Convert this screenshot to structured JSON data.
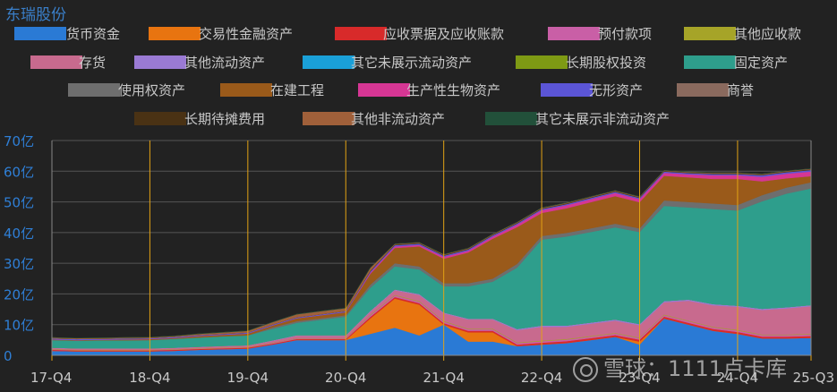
{
  "company_name": "东瑞股份",
  "watermark": "雪球：1111卢卡库",
  "chart_data": {
    "type": "area",
    "stacked": true,
    "y_unit": "亿",
    "ylim": [
      0,
      70
    ],
    "y_ticks": [
      "0",
      "10亿",
      "20亿",
      "30亿",
      "40亿",
      "50亿",
      "60亿",
      "70亿"
    ],
    "x_ticks": [
      "17-Q4",
      "18-Q4",
      "19-Q4",
      "20-Q4",
      "21-Q4",
      "22-Q4",
      "23-Q4",
      "24-Q4",
      "25-Q3"
    ],
    "x": [
      "17-Q4",
      "18-Q1",
      "18-Q2",
      "18-Q3",
      "18-Q4",
      "19-Q1",
      "19-Q2",
      "19-Q3",
      "19-Q4",
      "20-Q1",
      "20-Q2",
      "20-Q3",
      "20-Q4",
      "21-Q1",
      "21-Q2",
      "21-Q3",
      "21-Q4",
      "22-Q1",
      "22-Q2",
      "22-Q3",
      "22-Q4",
      "23-Q1",
      "23-Q2",
      "23-Q3",
      "23-Q4",
      "24-Q1",
      "24-Q2",
      "24-Q3",
      "24-Q4",
      "25-Q1",
      "25-Q2",
      "25-Q3"
    ],
    "legend_position": "top",
    "grid": true,
    "series": [
      {
        "name": "货币资金",
        "color": "#2a7ad5",
        "values": [
          1.5,
          1.3,
          1.3,
          1.3,
          1.3,
          1.5,
          1.8,
          2,
          2.2,
          3.5,
          5,
          5,
          5,
          7,
          9,
          6.5,
          10,
          4.5,
          4.5,
          3,
          3.5,
          4,
          5,
          6,
          3.5,
          12,
          10,
          8,
          7,
          5.5,
          5.5,
          5.7
        ]
      },
      {
        "name": "交易性金融资产",
        "color": "#e87410",
        "values": [
          0,
          0,
          0,
          0,
          0,
          0,
          0,
          0,
          0,
          0,
          0,
          0,
          0,
          5,
          9.5,
          10,
          0,
          3,
          3,
          0,
          0,
          0,
          0,
          0,
          1,
          0,
          0,
          0,
          0,
          0,
          0,
          0
        ]
      },
      {
        "name": "应收票据及应收账款",
        "color": "#d82a2a",
        "values": [
          0.3,
          0.3,
          0.3,
          0.3,
          0.3,
          0.3,
          0.3,
          0.3,
          0.3,
          0.3,
          0.3,
          0.3,
          0.3,
          0.5,
          0.5,
          0.5,
          0.5,
          0.5,
          0.5,
          0.5,
          0.6,
          0.6,
          0.6,
          0.6,
          0.6,
          0.6,
          0.6,
          0.6,
          0.6,
          0.6,
          0.6,
          0.6
        ]
      },
      {
        "name": "预付款项",
        "color": "#c95fa6",
        "values": [
          0.1,
          0.1,
          0.1,
          0.1,
          0.1,
          0.1,
          0.1,
          0.1,
          0.1,
          0.2,
          0.2,
          0.2,
          0.2,
          0.5,
          0.5,
          0.5,
          0.5,
          0.5,
          0.5,
          0.5,
          0.5,
          0.5,
          0.5,
          0.5,
          0.5,
          0.5,
          0.5,
          0.5,
          0.5,
          0.5,
          0.5,
          0.5
        ]
      },
      {
        "name": "其他应收款",
        "color": "#a6a428",
        "values": [
          0.1,
          0.1,
          0.1,
          0.1,
          0.1,
          0.1,
          0.1,
          0.1,
          0.1,
          0.1,
          0.1,
          0.1,
          0.1,
          0.2,
          0.2,
          0.2,
          0.2,
          0.2,
          0.2,
          0.2,
          0.2,
          0.2,
          0.2,
          0.2,
          0.2,
          0.2,
          0.2,
          0.2,
          0.2,
          0.2,
          0.2,
          0.2
        ]
      },
      {
        "name": "存货",
        "color": "#c86a8e",
        "values": [
          0.4,
          0.4,
          0.4,
          0.4,
          0.4,
          0.4,
          0.4,
          0.5,
          0.5,
          0.6,
          0.8,
          0.8,
          0.8,
          1,
          1.5,
          2,
          2.5,
          3,
          3,
          4,
          4.5,
          4,
          4,
          4,
          4,
          4,
          6.5,
          7,
          7.5,
          8,
          8.5,
          9
        ]
      },
      {
        "name": "其他流动资产",
        "color": "#9a7ad4",
        "values": [
          0.1,
          0.1,
          0.1,
          0.1,
          0.1,
          0.1,
          0.1,
          0.1,
          0.1,
          0.2,
          0.2,
          0.2,
          0.2,
          0.3,
          0.3,
          0.3,
          0.3,
          0.3,
          0.3,
          0.4,
          0.4,
          0.4,
          0.4,
          0.4,
          0.4,
          0.4,
          0.4,
          0.4,
          0.4,
          0.4,
          0.4,
          0.4
        ]
      },
      {
        "name": "其它未展示流动资产",
        "color": "#1aa0d8",
        "values": [
          0,
          0,
          0,
          0,
          0,
          0,
          0,
          0,
          0,
          0,
          0,
          0,
          0,
          0,
          0,
          0,
          0,
          0,
          0,
          0,
          0,
          0,
          0,
          0,
          0,
          0,
          0,
          0,
          0,
          0,
          0,
          0
        ]
      },
      {
        "name": "长期股权投资",
        "color": "#7e9a14",
        "values": [
          0,
          0,
          0,
          0,
          0,
          0,
          0,
          0,
          0,
          0,
          0,
          0,
          0,
          0,
          0,
          0,
          0,
          0,
          0,
          0,
          0,
          0,
          0,
          0,
          0,
          0,
          0,
          0,
          0,
          0,
          0,
          0
        ]
      },
      {
        "name": "固定资产",
        "color": "#2e9e8c",
        "values": [
          2.5,
          2.5,
          2.6,
          2.6,
          2.7,
          2.9,
          3,
          3.1,
          3.2,
          3.7,
          4,
          5,
          6,
          7.5,
          7.5,
          8,
          8.5,
          10.5,
          12,
          20,
          28,
          29,
          29.5,
          30,
          30,
          31,
          30,
          31,
          31,
          35,
          37,
          38
        ]
      },
      {
        "name": "使用权资产",
        "color": "#6e6e6e",
        "values": [
          0,
          0,
          0,
          0,
          0,
          0,
          0,
          0,
          0,
          0.5,
          0.5,
          0.5,
          0.5,
          1,
          1,
          1,
          1,
          1,
          1,
          1.2,
          1.2,
          1.2,
          1.2,
          1.2,
          1.2,
          1.8,
          1.8,
          1.8,
          1.8,
          2,
          2,
          2
        ]
      },
      {
        "name": "在建工程",
        "color": "#9a5a1a",
        "values": [
          0.2,
          0.2,
          0.2,
          0.3,
          0.3,
          0.3,
          0.5,
          0.5,
          0.6,
          0.6,
          1,
          1,
          1,
          3.5,
          5,
          6.5,
          8,
          10,
          13,
          12,
          7.5,
          8,
          8.5,
          9,
          8.5,
          8,
          8,
          8,
          8.5,
          4.5,
          3,
          2
        ]
      },
      {
        "name": "生产性生物资产",
        "color": "#d63694",
        "values": [
          0,
          0,
          0,
          0,
          0,
          0,
          0,
          0,
          0,
          0,
          0,
          0,
          0,
          0.4,
          0.5,
          0.5,
          0.6,
          0.6,
          0.7,
          0.8,
          0.9,
          1,
          1,
          1,
          1,
          1,
          1,
          1.2,
          1.2,
          1.5,
          1.5,
          1.5
        ]
      },
      {
        "name": "无形资产",
        "color": "#5b55d6",
        "values": [
          0.3,
          0.3,
          0.3,
          0.3,
          0.3,
          0.3,
          0.3,
          0.3,
          0.3,
          0.3,
          0.3,
          0.3,
          0.3,
          0.4,
          0.4,
          0.4,
          0.4,
          0.4,
          0.4,
          0.4,
          0.4,
          0.4,
          0.4,
          0.4,
          0.4,
          0.4,
          0.4,
          0.4,
          0.4,
          0.5,
          0.5,
          0.5
        ]
      },
      {
        "name": "商誉",
        "color": "#8a6a5e",
        "values": [
          0,
          0,
          0,
          0,
          0,
          0,
          0,
          0,
          0,
          0,
          0,
          0,
          0,
          0,
          0,
          0,
          0,
          0,
          0,
          0,
          0,
          0,
          0,
          0,
          0,
          0,
          0,
          0,
          0,
          0,
          0,
          0
        ]
      },
      {
        "name": "长期待摊费用",
        "color": "#4a3214",
        "values": [
          0,
          0,
          0,
          0,
          0,
          0,
          0,
          0,
          0,
          0,
          0,
          0,
          0,
          0.2,
          0.2,
          0.2,
          0.2,
          0.2,
          0.2,
          0.2,
          0.2,
          0.2,
          0.2,
          0.2,
          0.2,
          0.2,
          0.2,
          0.2,
          0.2,
          0.2,
          0.2,
          0.2
        ]
      },
      {
        "name": "其他非流动资产",
        "color": "#a0603a",
        "values": [
          0.3,
          0.3,
          0.3,
          0.3,
          0.3,
          0.3,
          0.4,
          0.5,
          0.6,
          0.8,
          1,
          1,
          1,
          1,
          0.2,
          0.2,
          0.2,
          0.2,
          0.2,
          0.2,
          0.2,
          0.2,
          0.2,
          0.2,
          0.2,
          0.2,
          0.2,
          0.2,
          0.2,
          0.2,
          0.2,
          0.2
        ]
      },
      {
        "name": "其它未展示非流动资产",
        "color": "#22503a",
        "values": [
          0,
          0,
          0,
          0,
          0,
          0,
          0,
          0,
          0,
          0,
          0,
          0,
          0,
          0,
          0,
          0,
          0,
          0,
          0,
          0,
          0,
          0,
          0,
          0,
          0,
          0,
          0,
          0,
          0,
          0,
          0,
          0
        ]
      }
    ]
  }
}
